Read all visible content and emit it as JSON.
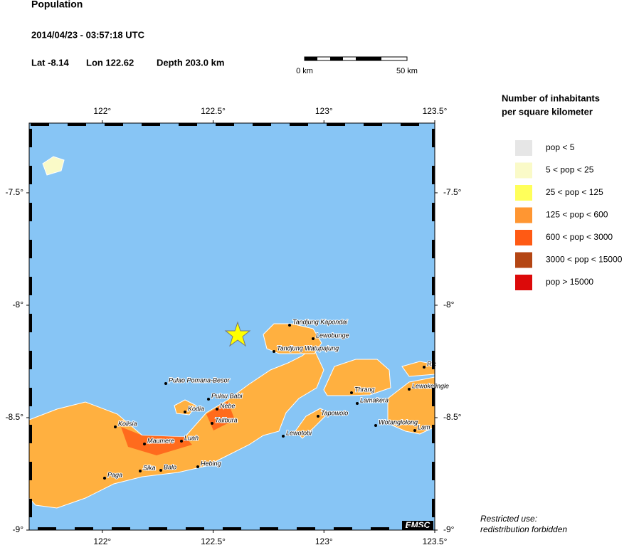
{
  "header": {
    "title": "Population",
    "datetime": "2014/04/23 - 03:57:18 UTC",
    "lat": "Lat -8.14",
    "lon": "Lon 122.62",
    "depth": "Depth 203.0 km"
  },
  "scale_bar": {
    "start": "0 km",
    "end": "50 km"
  },
  "map": {
    "lon_range": [
      121.67,
      123.5
    ],
    "lat_range": [
      -9,
      -7.19
    ],
    "lon_ticks": [
      {
        "value": 122,
        "label": "122°"
      },
      {
        "value": 122.5,
        "label": "122.5°"
      },
      {
        "value": 123,
        "label": "123°"
      },
      {
        "value": 123.5,
        "label": "123.5°"
      }
    ],
    "lat_ticks": [
      {
        "value": -7.5,
        "label": "-7.5°"
      },
      {
        "value": -8,
        "label": "-8°"
      },
      {
        "value": -8.5,
        "label": "-8.5°"
      },
      {
        "value": -9,
        "label": "-9°"
      }
    ],
    "places": [
      "Tandjung Kapondai",
      "Lewobunge",
      "Tandjung Watupajung",
      "Pulao Pomana-Besor",
      "Pulau Babi",
      "Nebe",
      "Kodia",
      "Talibura",
      "Kolisia",
      "Maumere",
      "Luah",
      "Sika",
      "Balo",
      "Hebing",
      "Paga",
      "Lewotobi",
      "Tapowolo",
      "Thrang",
      "Lamakera",
      "Lewokelingle",
      "Wotanglolong",
      "Lam",
      "Ric"
    ],
    "badge": "EMSC"
  },
  "legend": {
    "title_line1": "Number of inhabitants",
    "title_line2": "per square kilometer",
    "items": [
      {
        "label": "pop < 5",
        "color": "#e6e6e6"
      },
      {
        "label": "5 < pop < 25",
        "color": "#fafac8"
      },
      {
        "label": "25 < pop < 125",
        "color": "#ffff5a"
      },
      {
        "label": "125 < pop < 600",
        "color": "#ff9632"
      },
      {
        "label": "600 < pop < 3000",
        "color": "#ff5a14"
      },
      {
        "label": "3000 < pop < 15000",
        "color": "#b44614"
      },
      {
        "label": "pop > 15000",
        "color": "#dc0a0a"
      }
    ]
  },
  "footer": {
    "line1": "Restricted use:",
    "line2": "redistribution forbidden"
  }
}
